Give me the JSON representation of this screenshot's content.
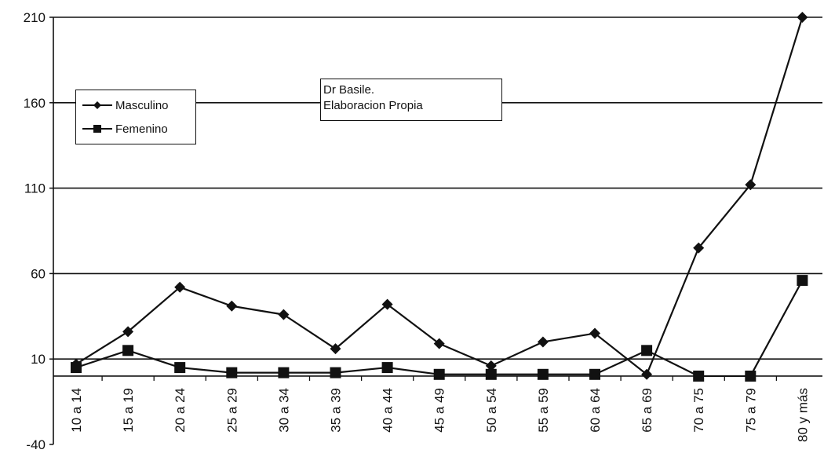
{
  "chart_data": {
    "type": "line",
    "categories": [
      "10 a 14",
      "15 a 19",
      "20 a 24",
      "25 a 29",
      "30 a 34",
      "35 a 39",
      "40 a 44",
      "45 a 49",
      "50 a 54",
      "55 a 59",
      "60 a 64",
      "65 a 69",
      "70 a 75",
      "75 a 79",
      "80 y más"
    ],
    "series": [
      {
        "name": "Masculino",
        "marker": "diamond",
        "values": [
          7,
          26,
          52,
          41,
          36,
          16,
          42,
          19,
          6,
          20,
          25,
          1,
          75,
          112,
          210
        ]
      },
      {
        "name": "Femenino",
        "marker": "square",
        "values": [
          5,
          15,
          5,
          2,
          2,
          2,
          5,
          1,
          1,
          1,
          1,
          15,
          0,
          0,
          56
        ]
      }
    ],
    "yticks": [
      210,
      160,
      110,
      60,
      10,
      -40
    ],
    "ylim": [
      -40,
      210
    ],
    "grid": true,
    "legend": "top-left",
    "annotation": [
      "Dr Basile.",
      "Elaboracion Propia"
    ],
    "colors": {
      "line": "#111111"
    }
  }
}
